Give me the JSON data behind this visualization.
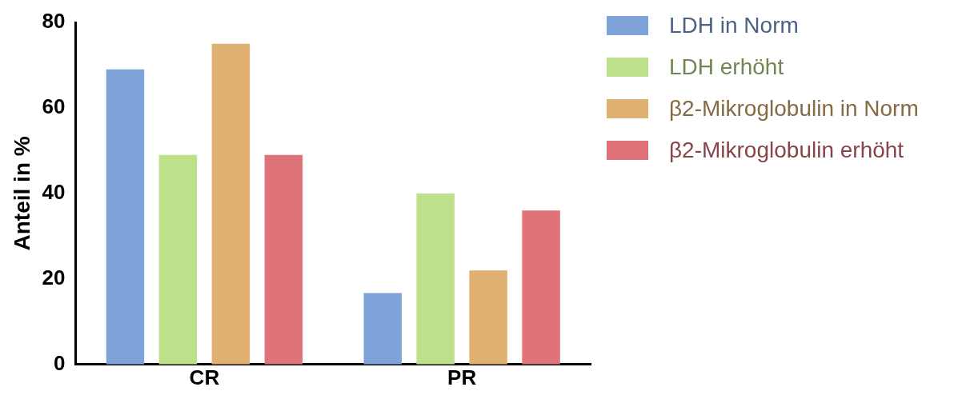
{
  "chart_data": {
    "type": "bar",
    "ylabel": "Anteil in %",
    "categories": [
      "CR",
      "PR"
    ],
    "series": [
      {
        "name": "LDH in Norm",
        "color": "#7fa3d8",
        "values": [
          69,
          16.7
        ]
      },
      {
        "name": "LDH erhöht",
        "color": "#bde08a",
        "values": [
          49,
          40
        ]
      },
      {
        "name": "β2-Mikroglobulin in Norm",
        "color": "#e0b070",
        "values": [
          75,
          22
        ]
      },
      {
        "name": "β2-Mikroglobulin erhöht",
        "color": "#e0737a",
        "values": [
          49,
          36
        ]
      }
    ],
    "ylim": [
      0,
      80
    ],
    "yticks": [
      0,
      20,
      40,
      60,
      80
    ],
    "grid": false,
    "legend": "top right"
  }
}
